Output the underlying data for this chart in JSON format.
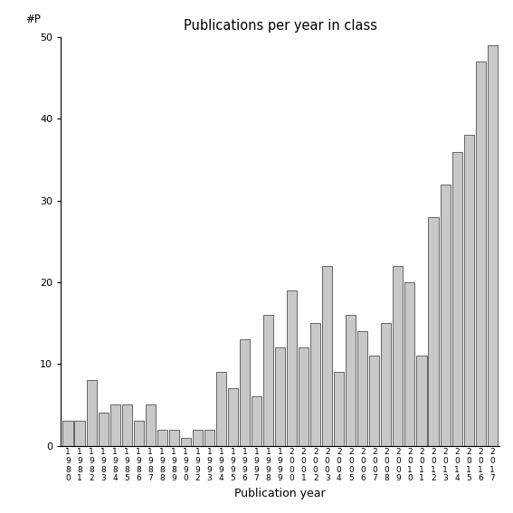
{
  "years": [
    "1980",
    "1981",
    "1982",
    "1983",
    "1984",
    "1985",
    "1986",
    "1987",
    "1988",
    "1989",
    "1990",
    "1992",
    "1993",
    "1994",
    "1995",
    "1996",
    "1997",
    "1998",
    "1999",
    "2000",
    "2001",
    "2002",
    "2003",
    "2004",
    "2005",
    "2006",
    "2007",
    "2008",
    "2009",
    "2010",
    "2011",
    "2012",
    "2013",
    "2014",
    "2015",
    "2016",
    "2017"
  ],
  "values": [
    3,
    3,
    8,
    4,
    5,
    5,
    3,
    5,
    2,
    2,
    1,
    2,
    2,
    9,
    7,
    13,
    6,
    16,
    12,
    19,
    12,
    15,
    22,
    9,
    16,
    14,
    11,
    15,
    22,
    20,
    11,
    28,
    32,
    36,
    38,
    47,
    49
  ],
  "title": "Publications per year in class",
  "xlabel": "Publication year",
  "ylabel": "#P",
  "ylim": [
    0,
    50
  ],
  "bar_color": "#c8c8c8",
  "bar_edge_color": "#333333",
  "background_color": "#ffffff",
  "yticks": [
    0,
    10,
    20,
    30,
    40,
    50
  ]
}
